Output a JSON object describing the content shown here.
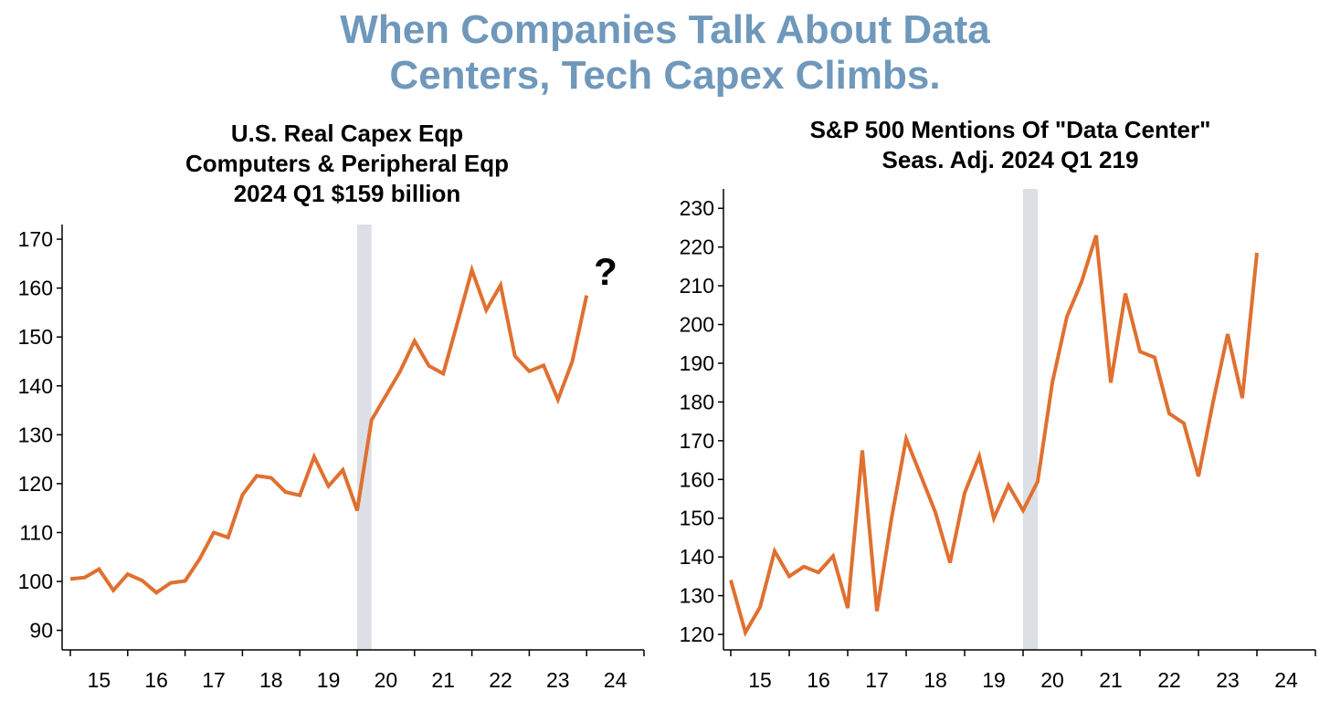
{
  "title_line1": "When Companies Talk About Data",
  "title_line2": "Centers, Tech Capex Climbs.",
  "colors": {
    "title": "#6f98bb",
    "line": "#e07030",
    "recession": "#dcdfe5",
    "axis": "#000000"
  },
  "chart_data": [
    {
      "type": "line",
      "title_lines": [
        "U.S. Real Capex Eqp",
        "Computers & Peripheral Eqp",
        "2024 Q1   $159 billion"
      ],
      "annotation": "?",
      "xlim": [
        2015,
        2025
      ],
      "ylim": [
        86,
        173
      ],
      "yticks": [
        90,
        100,
        110,
        120,
        130,
        140,
        150,
        160,
        170
      ],
      "xtick_labels": [
        "15",
        "16",
        "17",
        "18",
        "19",
        "20",
        "21",
        "22",
        "23",
        "24"
      ],
      "recession": [
        2020.0,
        2020.25
      ],
      "series": [
        {
          "x": [
            2015.0,
            2015.25,
            2015.5,
            2015.75,
            2016.0,
            2016.25,
            2016.5,
            2016.75,
            2017.0,
            2017.25,
            2017.5,
            2017.75,
            2018.0,
            2018.25,
            2018.5,
            2018.75,
            2019.0,
            2019.25,
            2019.5,
            2019.75,
            2020.0,
            2020.25,
            2020.5,
            2020.75,
            2021.0,
            2021.25,
            2021.5,
            2021.75,
            2022.0,
            2022.25,
            2022.5,
            2022.75,
            2023.0,
            2023.25,
            2023.5,
            2023.75,
            2024.0
          ],
          "values": [
            100.5,
            100.8,
            102.5,
            98.2,
            101.5,
            100.2,
            97.7,
            99.7,
            100.1,
            104.5,
            110.0,
            109.0,
            117.7,
            121.6,
            121.2,
            118.3,
            117.6,
            125.5,
            119.5,
            122.8,
            114.5,
            133.0,
            138.0,
            143.0,
            149.2,
            144.1,
            142.5,
            153.0,
            163.7,
            155.5,
            160.6,
            146.1,
            143.0,
            144.2,
            137.2,
            145.0,
            158.5
          ]
        }
      ]
    },
    {
      "type": "line",
      "title_lines": [
        "S&P 500 Mentions Of \"Data Center\"",
        "Seas. Adj.  2024 Q1    219"
      ],
      "xlim": [
        2015,
        2025
      ],
      "ylim": [
        116,
        235
      ],
      "yticks": [
        120,
        130,
        140,
        150,
        160,
        170,
        180,
        190,
        200,
        210,
        220,
        230
      ],
      "xtick_labels": [
        "15",
        "16",
        "17",
        "18",
        "19",
        "20",
        "21",
        "22",
        "23",
        "24"
      ],
      "recession": [
        2020.0,
        2020.25
      ],
      "series": [
        {
          "x": [
            2015.0,
            2015.25,
            2015.5,
            2015.75,
            2016.0,
            2016.25,
            2016.5,
            2016.75,
            2017.0,
            2017.25,
            2017.5,
            2017.75,
            2018.0,
            2018.25,
            2018.5,
            2018.75,
            2019.0,
            2019.25,
            2019.5,
            2019.75,
            2020.0,
            2020.25,
            2020.5,
            2020.75,
            2021.0,
            2021.25,
            2021.5,
            2021.75,
            2022.0,
            2022.25,
            2022.5,
            2022.75,
            2023.0,
            2023.25,
            2023.5,
            2023.75,
            2024.0
          ],
          "values": [
            134.0,
            120.5,
            127.0,
            141.5,
            135.0,
            137.5,
            136.0,
            140.2,
            126.8,
            167.5,
            126.0,
            150.0,
            170.5,
            161.0,
            151.5,
            138.5,
            156.5,
            166.0,
            150.0,
            158.5,
            152.0,
            159.5,
            185.0,
            202.0,
            211.0,
            223.0,
            185.0,
            208.0,
            193.0,
            191.5,
            177.0,
            174.5,
            160.8,
            180.0,
            197.5,
            181.0,
            218.5
          ]
        }
      ]
    }
  ]
}
